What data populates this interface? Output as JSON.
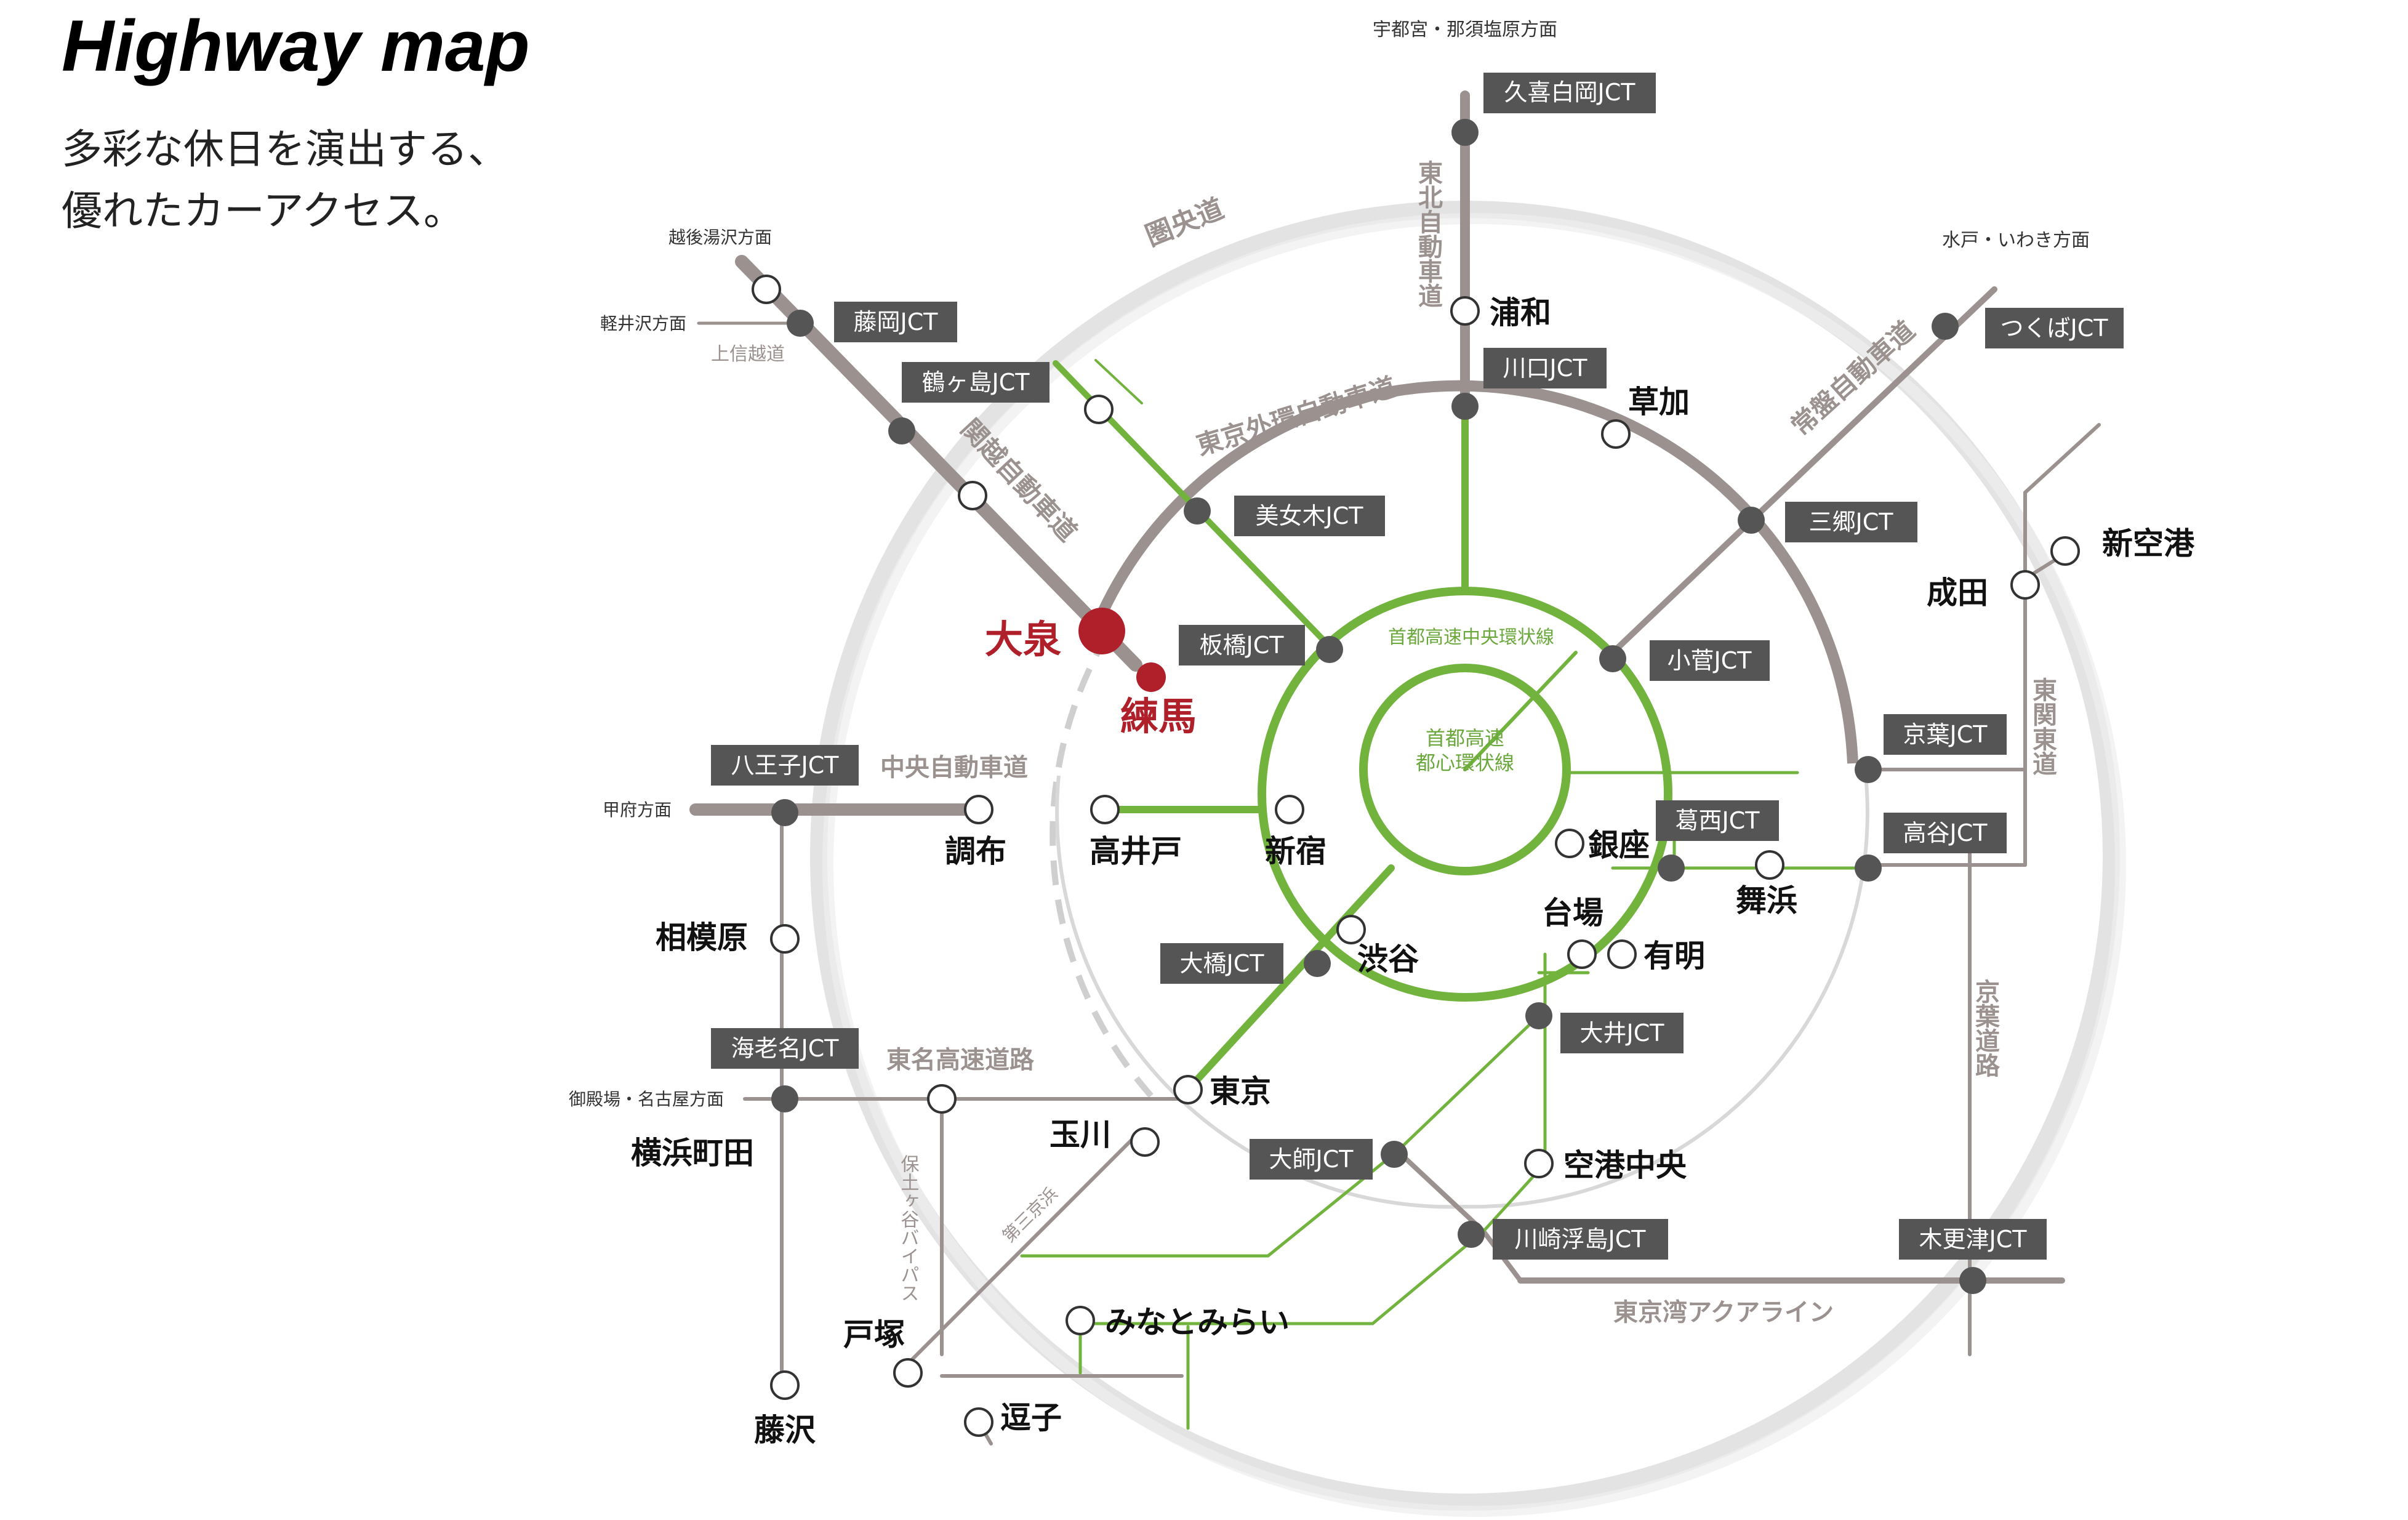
{
  "header": {
    "title": "Highway map",
    "subtitle_line1": "多彩な休日を演出する、",
    "subtitle_line2": "優れたカーアクセス。"
  },
  "colors": {
    "expressway": "#9b9290",
    "shuto": "#72b33e",
    "jct_label_bg": "#555555",
    "highlight": "#b0202a",
    "outer_ring": "#e3e3e3"
  },
  "directions": {
    "utsunomiya": "宇都宮・那須塩原方面",
    "echigo": "越後湯沢方面",
    "karuizawa": "軽井沢方面",
    "mito": "水戸・いわき方面",
    "kofu": "甲府方面",
    "gotemba": "御殿場・名古屋方面"
  },
  "routes": {
    "kenodo": "圏央道",
    "tohoku": "東北自動車道",
    "kanetsu": "関越自動車道",
    "joshinetsu": "上信越道",
    "gaikan": "東京外環自動車道",
    "joban": "常盤自動車道",
    "chuo_expwy": "中央自動車道",
    "tomei": "東名高速道路",
    "hodogaya": "保土ヶ谷バイパス",
    "daisan_keihin": "第三京浜",
    "aqualine": "東京湾アクアライン",
    "keiyo": "京葉道路",
    "higashikanto": "東関東道",
    "central_circular": "首都高速中央環状線",
    "inner_circular_1": "首都高速",
    "inner_circular_2": "都心環状線"
  },
  "junctions": {
    "kuki": "久喜白岡JCT",
    "fujioka": "藤岡JCT",
    "tsurugashima": "鶴ヶ島JCT",
    "kawaguchi": "川口JCT",
    "tsukuba": "つくばJCT",
    "bijogi": "美女木JCT",
    "misato": "三郷JCT",
    "itabashi": "板橋JCT",
    "kosuge": "小菅JCT",
    "keiyo": "京葉JCT",
    "hachioji": "八王子JCT",
    "kasai": "葛西JCT",
    "takaya": "高谷JCT",
    "ohashi": "大橋JCT",
    "oi": "大井JCT",
    "ebina": "海老名JCT",
    "daishi": "大師JCT",
    "kawasaki": "川崎浮島JCT",
    "kisarazu": "木更津JCT"
  },
  "places": {
    "urawa": "浦和",
    "soka": "草加",
    "shinkuko": "新空港",
    "narita": "成田",
    "oizumi": "大泉",
    "nerima": "練馬",
    "chofu": "調布",
    "takaido": "高井戸",
    "shinjuku": "新宿",
    "ginza": "銀座",
    "maihama": "舞浜",
    "daiba": "台場",
    "ariake": "有明",
    "shibuya": "渋谷",
    "sagamihara": "相模原",
    "tokyo": "東京",
    "tamagawa": "玉川",
    "yokohama_machida": "横浜町田",
    "kuko_chuo": "空港中央",
    "minatomirai": "みなとみらい",
    "totsuka": "戸塚",
    "zushi": "逗子",
    "fujisawa": "藤沢"
  }
}
